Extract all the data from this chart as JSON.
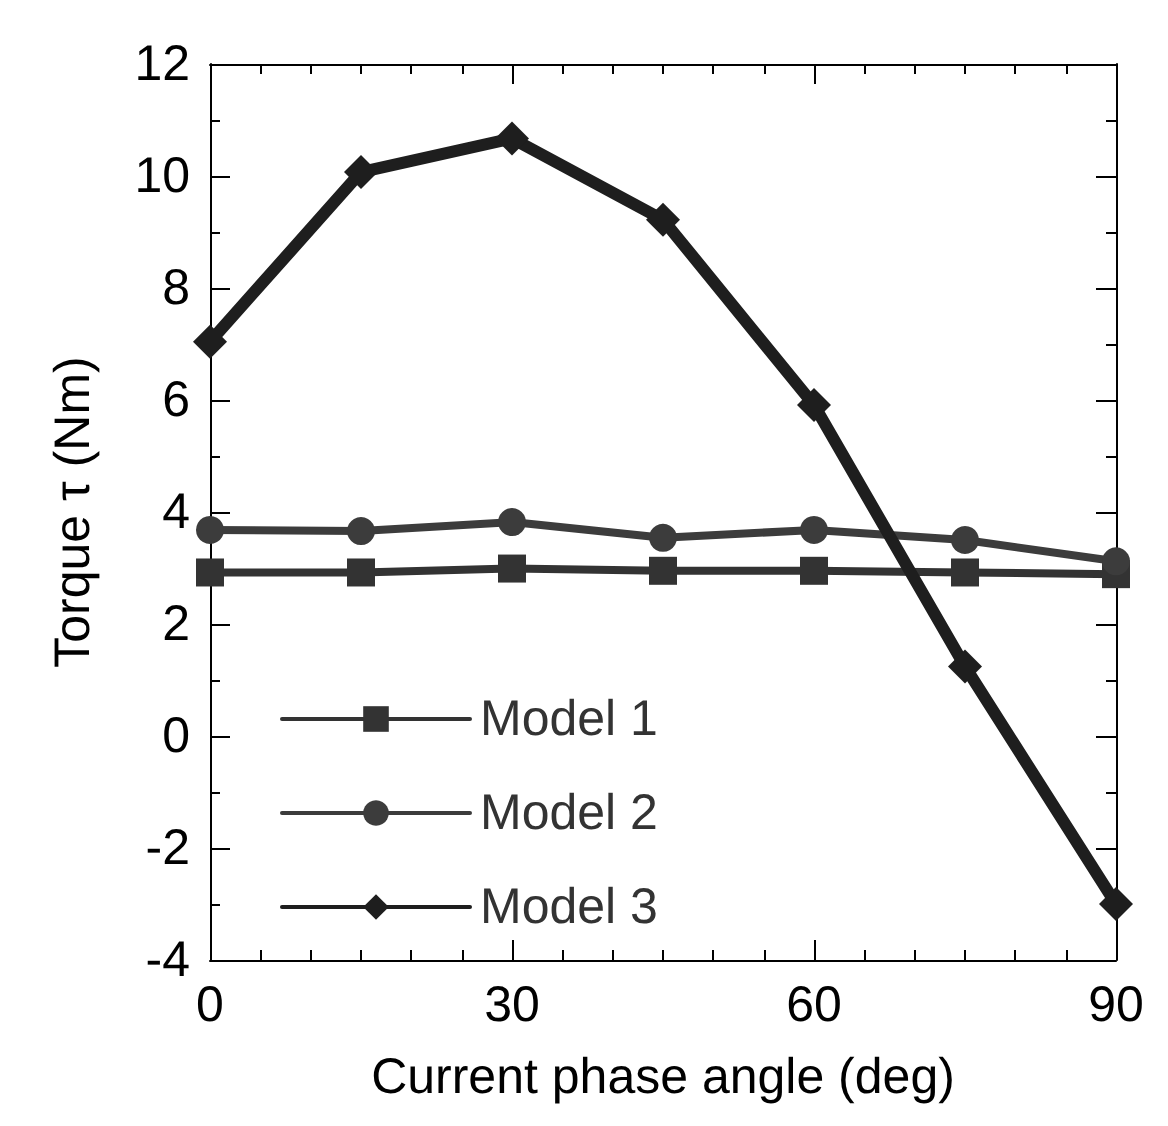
{
  "chart_data": {
    "type": "line",
    "xlabel": "Current phase angle (deg)",
    "ylabel": "Torque τ (Nm)",
    "x": [
      0,
      15,
      30,
      45,
      60,
      75,
      90
    ],
    "series": [
      {
        "name": "Model 1",
        "color": "#333333",
        "marker": "square",
        "values": [
          2.92,
          2.92,
          2.99,
          2.95,
          2.95,
          2.92,
          2.89
        ]
      },
      {
        "name": "Model 2",
        "color": "#3c3c3c",
        "marker": "circle",
        "values": [
          3.68,
          3.66,
          3.82,
          3.54,
          3.68,
          3.5,
          3.12
        ]
      },
      {
        "name": "Model 3",
        "color": "#1e1e1e",
        "marker": "diamond",
        "values": [
          7.04,
          10.07,
          10.67,
          9.22,
          5.91,
          1.24,
          -3.0
        ]
      }
    ],
    "xlim": [
      0,
      90
    ],
    "xticks": [
      0,
      {
        "value": 5,
        "label": null
      },
      {
        "value": 10,
        "label": null
      },
      {
        "value": 15,
        "label": null
      },
      {
        "value": 20,
        "label": null
      },
      {
        "value": 25,
        "label": null
      },
      30,
      {
        "value": 35,
        "label": null
      },
      {
        "value": 40,
        "label": null
      },
      {
        "value": 45,
        "label": null
      },
      {
        "value": 50,
        "label": null
      },
      {
        "value": 55,
        "label": null
      },
      60,
      {
        "value": 65,
        "label": null
      },
      {
        "value": 70,
        "label": null
      },
      {
        "value": 75,
        "label": null
      },
      {
        "value": 80,
        "label": null
      },
      {
        "value": 85,
        "label": null
      },
      90
    ],
    "ylim": [
      -4,
      12
    ],
    "yticks": [
      -4,
      {
        "value": -3,
        "label": null
      },
      -2,
      {
        "value": -1,
        "label": null
      },
      0,
      {
        "value": 1,
        "label": null
      },
      2,
      {
        "value": 3,
        "label": null
      },
      4,
      {
        "value": 5,
        "label": null
      },
      6,
      {
        "value": 7,
        "label": null
      },
      8,
      {
        "value": 9,
        "label": null
      },
      10,
      {
        "value": 11,
        "label": null
      },
      12
    ],
    "grid": false,
    "legend": "bottom left",
    "line_style": "solid"
  }
}
